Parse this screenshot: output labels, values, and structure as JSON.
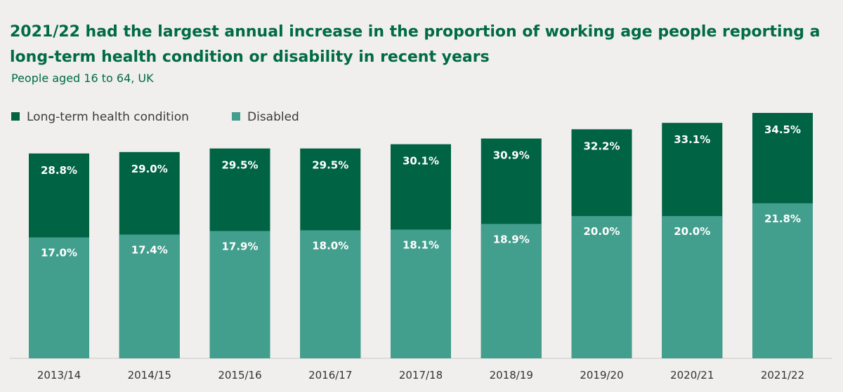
{
  "colors": {
    "background": "#f0efed",
    "title": "#006b45",
    "long_term": "#006343",
    "disabled": "#429e8d",
    "axis": "#c8c8c8"
  },
  "chart_data": {
    "type": "bar",
    "title": "2021/22 had the largest annual increase in the proportion of working age people reporting a long-term health condition or disability in recent years",
    "subtitle": "People aged 16 to 64, UK",
    "categories": [
      "2013/14",
      "2014/15",
      "2015/16",
      "2016/17",
      "2017/18",
      "2018/19",
      "2019/20",
      "2020/21",
      "2021/22"
    ],
    "series": [
      {
        "name": "Long-term health condition",
        "values": [
          28.8,
          29.0,
          29.5,
          29.5,
          30.1,
          30.9,
          32.2,
          33.1,
          34.5
        ],
        "labels": [
          "28.8%",
          "29.0%",
          "29.5%",
          "29.5%",
          "30.1%",
          "30.9%",
          "32.2%",
          "33.1%",
          "34.5%"
        ]
      },
      {
        "name": "Disabled",
        "values": [
          17.0,
          17.4,
          17.9,
          18.0,
          18.1,
          18.9,
          20.0,
          20.0,
          21.8
        ],
        "labels": [
          "17.0%",
          "17.4%",
          "17.9%",
          "18.0%",
          "18.1%",
          "18.9%",
          "20.0%",
          "20.0%",
          "21.8%"
        ]
      }
    ],
    "ylim": [
      0,
      34.5
    ],
    "legend": "top-left",
    "grid": false
  }
}
